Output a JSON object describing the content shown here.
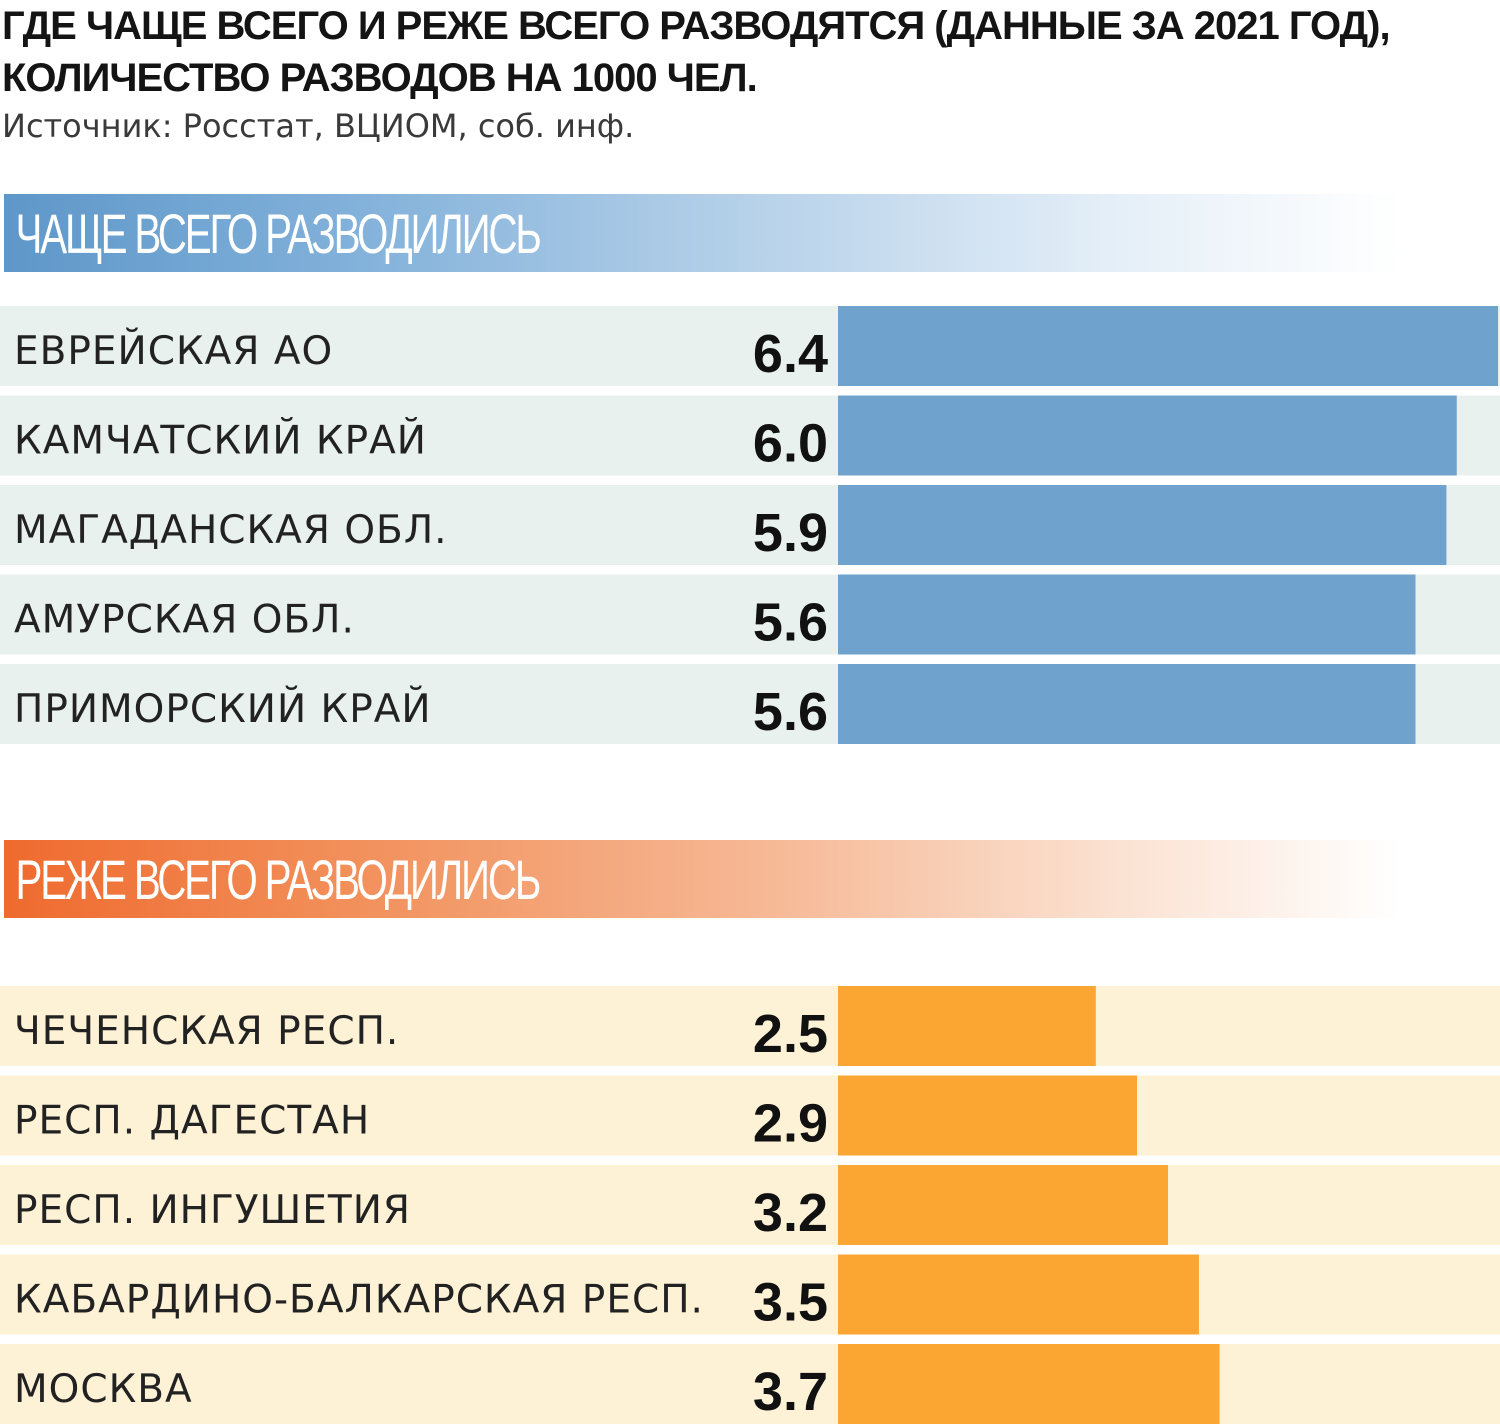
{
  "title": {
    "line1": "ГДЕ ЧАЩЕ ВСЕГО И РЕЖЕ ВСЕГО РАЗВОДЯТСЯ (ДАННЫЕ ЗА 2021 ГОД),",
    "line2": "КОЛИЧЕСТВО РАЗВОДОВ НА 1000 ЧЕЛ."
  },
  "source": "Источник: Росстат, ВЦИОМ, соб. инф.",
  "colors": {
    "blue_bar": "#6fa3cd",
    "blue_row": "#e9f1ef",
    "orange_bar": "#fba633",
    "orange_row": "#fdf2d6"
  },
  "chart_data": [
    {
      "type": "bar",
      "orientation": "horizontal",
      "title": "ЧАЩЕ ВСЕГО РАЗВОДИЛИСЬ",
      "categories": [
        "ЕВРЕЙСКАЯ АО",
        "КАМЧАТСКИЙ КРАЙ",
        "МАГАДАНСКАЯ ОБЛ.",
        "АМУРСКАЯ ОБЛ.",
        "ПРИМОРСКИЙ КРАЙ"
      ],
      "values": [
        6.4,
        6.0,
        5.9,
        5.6,
        5.6
      ],
      "value_labels": [
        "6.4",
        "6.0",
        "5.9",
        "5.6",
        "5.6"
      ],
      "xlim": [
        0,
        6.4
      ],
      "grid": false
    },
    {
      "type": "bar",
      "orientation": "horizontal",
      "title": "РЕЖЕ ВСЕГО РАЗВОДИЛИСЬ",
      "categories": [
        "ЧЕЧЕНСКАЯ РЕСП.",
        "РЕСП. ДАГЕСТАН",
        "РЕСП. ИНГУШЕТИЯ",
        "КАБАРДИНО-БАЛКАРСКАЯ РЕСП.",
        "МОСКВА"
      ],
      "values": [
        2.5,
        2.9,
        3.2,
        3.5,
        3.7
      ],
      "value_labels": [
        "2.5",
        "2.9",
        "3.2",
        "3.5",
        "3.7"
      ],
      "xlim": [
        0,
        6.4
      ],
      "grid": false
    }
  ]
}
